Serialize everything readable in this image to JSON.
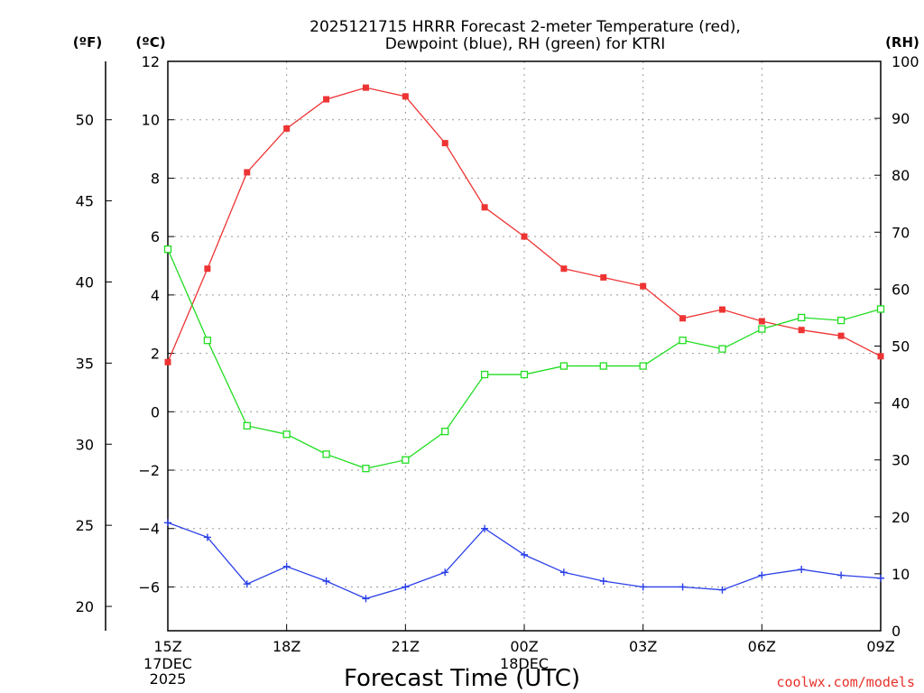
{
  "chart_data": {
    "type": "line",
    "title_lines": [
      "2025121715 HRRR Forecast 2-meter Temperature (red),",
      "Dewpoint (blue), RH (green) for KTRI"
    ],
    "xlabel": "Forecast Time (UTC)",
    "credit": "coolwx.com/models",
    "x_hours": [
      0,
      1,
      2,
      3,
      4,
      5,
      6,
      7,
      8,
      9,
      10,
      11,
      12,
      13,
      14,
      15,
      16,
      17,
      18
    ],
    "x_tick_hours": [
      0,
      3,
      6,
      9,
      12,
      15,
      18
    ],
    "x_tick_labels": [
      "15Z",
      "18Z",
      "21Z",
      "00Z",
      "03Z",
      "06Z",
      "09Z"
    ],
    "x_date_labels": [
      {
        "hour": 0,
        "lines": [
          "17DEC",
          "2025"
        ]
      },
      {
        "hour": 9,
        "lines": [
          "18DEC"
        ]
      }
    ],
    "y_left_celsius": {
      "label": "(ºC)",
      "min": -7.5,
      "max": 12,
      "ticks": [
        12,
        10,
        8,
        6,
        4,
        2,
        0,
        -2,
        -4,
        -6
      ],
      "tick_labels": [
        "12",
        "10",
        "8",
        "6",
        "4",
        "2",
        "0",
        "−2",
        "−4",
        "−6"
      ]
    },
    "y_left_fahrenheit": {
      "label": "(ºF)",
      "ticks": [
        50,
        45,
        40,
        35,
        30,
        25,
        20
      ],
      "tick_labels": [
        "50",
        "45",
        "40",
        "35",
        "30",
        "25",
        "20"
      ]
    },
    "y_right_rh": {
      "label": "(RH)",
      "min": 0,
      "max": 100,
      "ticks": [
        0,
        10,
        20,
        30,
        40,
        50,
        60,
        70,
        80,
        90,
        100
      ],
      "tick_labels": [
        "0",
        "10",
        "20",
        "30",
        "40",
        "50",
        "60",
        "70",
        "80",
        "90",
        "100"
      ]
    },
    "grid": "dotted",
    "series": [
      {
        "name": "2-meter Temperature",
        "axis": "celsius",
        "color": "#ee3333",
        "marker": "filled-square",
        "values": [
          1.7,
          4.9,
          8.2,
          9.7,
          10.7,
          11.1,
          10.8,
          9.2,
          7.0,
          6.0,
          4.9,
          4.6,
          4.3,
          3.2,
          3.5,
          3.1,
          2.8,
          2.6,
          1.9
        ]
      },
      {
        "name": "Dewpoint",
        "axis": "celsius",
        "color": "#2a3fe8",
        "marker": "plus",
        "values": [
          -3.8,
          -4.3,
          -5.9,
          -5.3,
          -5.8,
          -6.4,
          -6.0,
          -5.5,
          -4.0,
          -4.9,
          -5.5,
          -5.8,
          -6.0,
          -6.0,
          -6.1,
          -5.6,
          -5.4,
          -5.6,
          -5.7
        ]
      },
      {
        "name": "RH",
        "axis": "rh",
        "color": "#22dd22",
        "marker": "open-square",
        "values": [
          67,
          51,
          36,
          34.5,
          31,
          28.5,
          30,
          35,
          45,
          45,
          46.5,
          46.5,
          46.5,
          51,
          49.5,
          53,
          55,
          54.5,
          56.5
        ]
      }
    ]
  }
}
